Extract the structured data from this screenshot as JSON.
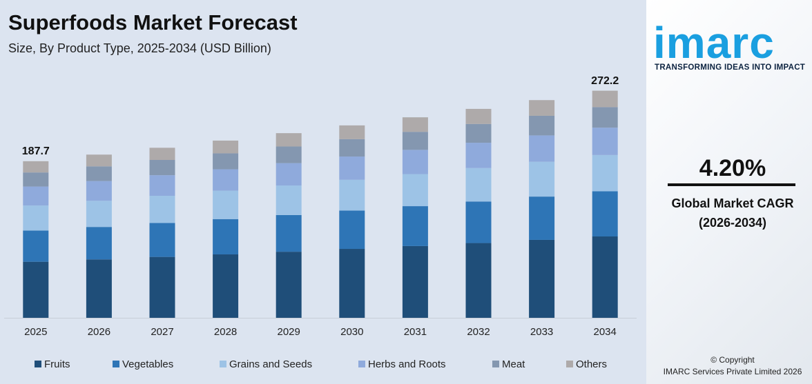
{
  "chart_data": {
    "type": "stacked_bar",
    "title": "Superfoods Market Forecast",
    "subtitle": "Size, By Product Type, 2025-2034 (USD Billion)",
    "categories": [
      "2025",
      "2026",
      "2027",
      "2028",
      "2029",
      "2030",
      "2031",
      "2032",
      "2033",
      "2034"
    ],
    "series": [
      {
        "name": "Fruits",
        "color": "#1f4e79",
        "values": [
          67.2,
          70.0,
          73.0,
          76.0,
          79.2,
          82.6,
          86.0,
          89.6,
          93.4,
          97.5
        ]
      },
      {
        "name": "Vegetables",
        "color": "#2e75b6",
        "values": [
          37.4,
          38.9,
          40.6,
          42.3,
          44.0,
          45.9,
          47.8,
          49.8,
          51.9,
          54.1
        ]
      },
      {
        "name": "Grains and Seeds",
        "color": "#9dc3e6",
        "values": [
          30.0,
          31.3,
          32.6,
          34.0,
          35.4,
          36.9,
          38.4,
          40.1,
          41.7,
          43.5
        ]
      },
      {
        "name": "Herbs and Roots",
        "color": "#8faadc",
        "values": [
          22.7,
          23.7,
          24.7,
          25.7,
          26.8,
          27.9,
          29.1,
          30.3,
          31.6,
          32.8
        ]
      },
      {
        "name": "Meat",
        "color": "#8497b0",
        "values": [
          16.9,
          17.6,
          18.3,
          19.1,
          19.9,
          20.8,
          21.6,
          22.5,
          23.5,
          24.6
        ]
      },
      {
        "name": "Others",
        "color": "#aeaaaa",
        "values": [
          13.5,
          14.1,
          14.6,
          15.3,
          16.0,
          16.5,
          17.4,
          18.1,
          18.8,
          19.7
        ]
      }
    ],
    "total_labels": [
      187.7,
      null,
      null,
      null,
      null,
      null,
      null,
      null,
      null,
      272.2
    ],
    "ylim": [
      0,
      290
    ],
    "grid": false,
    "legend": "bottom"
  },
  "sidebar": {
    "logo": "imarc",
    "tagline": "TRANSFORMING IDEAS INTO IMPACT",
    "cagr": "4.20%",
    "cagr_label": "Global Market CAGR",
    "cagr_period": "(2026-2034)",
    "copyright": "© Copyright",
    "company": "IMARC Services Private Limited 2026"
  }
}
